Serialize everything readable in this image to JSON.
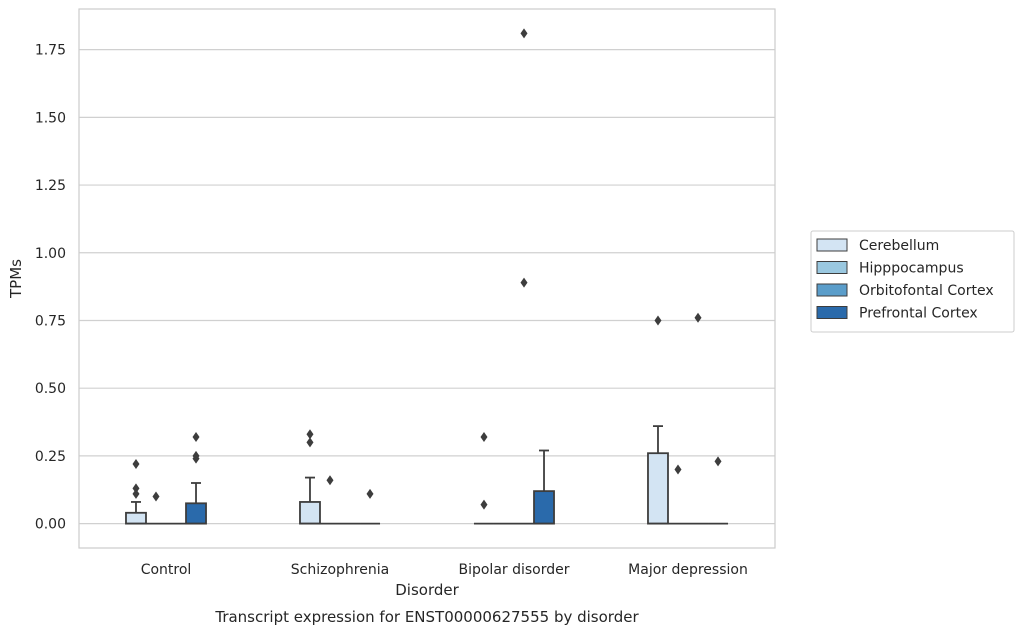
{
  "chart_data": {
    "type": "box",
    "xlabel": "Disorder",
    "ylabel": "TPMs",
    "caption": "Transcript expression for ENST00000627555 by disorder",
    "categories": [
      "Control",
      "Schizophrenia",
      "Bipolar disorder",
      "Major depression"
    ],
    "ylim": [
      -0.09,
      1.9
    ],
    "yticks": [
      0.0,
      0.25,
      0.5,
      0.75,
      1.0,
      1.25,
      1.5,
      1.75
    ],
    "ytick_labels": [
      "0.00",
      "0.25",
      "0.50",
      "0.75",
      "1.00",
      "1.25",
      "1.50",
      "1.75"
    ],
    "grid": "horizontal",
    "legend_position": "right",
    "series": [
      {
        "name": "Cerebellum",
        "color": "#d3e4f3",
        "boxes": [
          {
            "q1": 0.0,
            "median": 0.0,
            "q3": 0.04,
            "whisker_low": 0.0,
            "whisker_high": 0.08,
            "outliers": [
              0.11,
              0.13,
              0.22
            ]
          },
          {
            "q1": 0.0,
            "median": 0.0,
            "q3": 0.08,
            "whisker_low": 0.0,
            "whisker_high": 0.17,
            "outliers": [
              0.3,
              0.33
            ]
          },
          {
            "q1": 0.0,
            "median": 0.0,
            "q3": 0.0,
            "whisker_low": 0.0,
            "whisker_high": 0.0,
            "outliers": [
              0.07,
              0.32
            ]
          },
          {
            "q1": 0.0,
            "median": 0.0,
            "q3": 0.26,
            "whisker_low": 0.0,
            "whisker_high": 0.36,
            "outliers": [
              0.75
            ]
          }
        ]
      },
      {
        "name": "Hipppocampus",
        "color": "#9ac8e0",
        "boxes": [
          {
            "q1": 0.0,
            "median": 0.0,
            "q3": 0.0,
            "whisker_low": 0.0,
            "whisker_high": 0.0,
            "outliers": [
              0.1
            ]
          },
          {
            "q1": 0.0,
            "median": 0.0,
            "q3": 0.0,
            "whisker_low": 0.0,
            "whisker_high": 0.0,
            "outliers": [
              0.16
            ]
          },
          {
            "q1": 0.0,
            "median": 0.0,
            "q3": 0.0,
            "whisker_low": 0.0,
            "whisker_high": 0.0,
            "outliers": []
          },
          {
            "q1": 0.0,
            "median": 0.0,
            "q3": 0.0,
            "whisker_low": 0.0,
            "whisker_high": 0.0,
            "outliers": [
              0.2
            ]
          }
        ]
      },
      {
        "name": "Orbitofontal Cortex",
        "color": "#5a9dca",
        "boxes": [
          {
            "q1": 0.0,
            "median": 0.0,
            "q3": 0.0,
            "whisker_low": 0.0,
            "whisker_high": 0.0,
            "outliers": []
          },
          {
            "q1": 0.0,
            "median": 0.0,
            "q3": 0.0,
            "whisker_low": 0.0,
            "whisker_high": 0.0,
            "outliers": []
          },
          {
            "q1": 0.0,
            "median": 0.0,
            "q3": 0.0,
            "whisker_low": 0.0,
            "whisker_high": 0.0,
            "outliers": [
              0.89,
              1.81
            ]
          },
          {
            "q1": 0.0,
            "median": 0.0,
            "q3": 0.0,
            "whisker_low": 0.0,
            "whisker_high": 0.0,
            "outliers": [
              0.76
            ]
          }
        ]
      },
      {
        "name": "Prefrontal Cortex",
        "color": "#2a6aab",
        "boxes": [
          {
            "q1": 0.0,
            "median": 0.0,
            "q3": 0.075,
            "whisker_low": 0.0,
            "whisker_high": 0.15,
            "outliers": [
              0.24,
              0.25,
              0.32
            ]
          },
          {
            "q1": 0.0,
            "median": 0.0,
            "q3": 0.0,
            "whisker_low": 0.0,
            "whisker_high": 0.0,
            "outliers": [
              0.11
            ]
          },
          {
            "q1": 0.0,
            "median": 0.0,
            "q3": 0.12,
            "whisker_low": 0.0,
            "whisker_high": 0.27,
            "outliers": []
          },
          {
            "q1": 0.0,
            "median": 0.0,
            "q3": 0.0,
            "whisker_low": 0.0,
            "whisker_high": 0.0,
            "outliers": [
              0.23
            ]
          }
        ]
      }
    ]
  }
}
